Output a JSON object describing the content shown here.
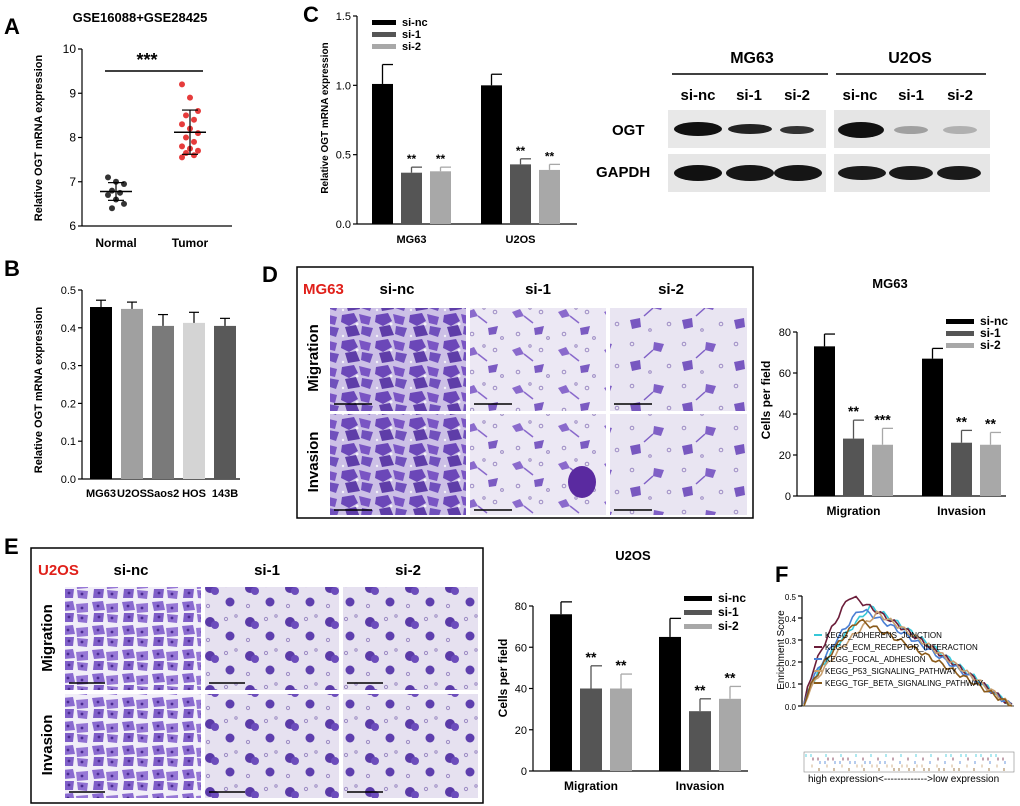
{
  "panels": {
    "A": {
      "letter": "A",
      "title": "GSE16088+GSE28425",
      "ylabel": "Relative OGT mRNA expression",
      "signif": "***",
      "yticks": [
        "6",
        "7",
        "8",
        "9",
        "10"
      ],
      "xticks": [
        "Normal",
        "Tumor"
      ],
      "normal_color": "#333333",
      "tumor_color": "#e63c3c"
    },
    "B": {
      "letter": "B",
      "ylabel": "Relative OGT mRNA expression",
      "yticks": [
        "0.0",
        "0.1",
        "0.2",
        "0.3",
        "0.4",
        "0.5"
      ]
    },
    "C": {
      "letter": "C",
      "ylabel": "Relative OGT mRNA expression",
      "yticks": [
        "0.0",
        "0.5",
        "1.0",
        "1.5"
      ],
      "legend": [
        "si-nc",
        "si-1",
        "si-2"
      ],
      "signif": [
        "**",
        "**",
        "**",
        "**"
      ],
      "blot": {
        "cell_lines": [
          "MG63",
          "U2OS"
        ],
        "lanes": [
          "si-nc",
          "si-1",
          "si-2",
          "si-nc",
          "si-1",
          "si-2"
        ],
        "rows": [
          "OGT",
          "GAPDH"
        ]
      }
    },
    "D": {
      "letter": "D",
      "cell_line": "MG63",
      "row_labels": [
        "Migration",
        "Invasion"
      ],
      "col_labels": [
        "si-nc",
        "si-1",
        "si-2"
      ],
      "chart_title": "MG63",
      "ylabel": "Cells per field",
      "yticks": [
        "0",
        "20",
        "40",
        "60",
        "80"
      ],
      "legend": [
        "si-nc",
        "si-1",
        "si-2"
      ],
      "signif": [
        "**",
        "***",
        "**",
        "**"
      ]
    },
    "E": {
      "letter": "E",
      "cell_line": "U2OS",
      "row_labels": [
        "Migration",
        "Invasion"
      ],
      "col_labels": [
        "si-nc",
        "si-1",
        "si-2"
      ],
      "chart_title": "U2OS",
      "ylabel": "Cells per field",
      "yticks": [
        "0",
        "20",
        "40",
        "60",
        "80"
      ],
      "legend": [
        "si-nc",
        "si-1",
        "si-2"
      ],
      "signif": [
        "**",
        "**",
        "**",
        "**"
      ]
    },
    "F": {
      "letter": "F",
      "ylabel": "Enrichment Score",
      "yticks": [
        "0.0",
        "0.1",
        "0.2",
        "0.3",
        "0.4",
        "0.5"
      ],
      "legend": [
        {
          "label": "KEGG_ADHERENS_JUNCTION",
          "color": "#36c7d8"
        },
        {
          "label": "KEGG_ECM_RECEPTOR_INTERACTION",
          "color": "#6b1d3a"
        },
        {
          "label": "KEGG_FOCAL_ADHESION",
          "color": "#4a7fd4"
        },
        {
          "label": "KEGG_P53_SIGNALING_PATHWAY",
          "color": "#c8a070"
        },
        {
          "label": "KEGG_TGF_BETA_SIGNALING_PATHWAY",
          "color": "#8a5a1a"
        }
      ],
      "bottom_label": "high expression<------------->low expression"
    }
  },
  "colors": {
    "si_nc": "#000000",
    "si_1": "#555555",
    "si_2": "#a8a8a8",
    "stain": "#6b47b8",
    "cell_line_red": "#e0201a"
  },
  "chart_data": [
    {
      "id": "A",
      "type": "scatter",
      "title": "GSE16088+GSE28425",
      "ylabel": "Relative OGT mRNA expression",
      "categories": [
        "Normal",
        "Tumor"
      ],
      "ylim": [
        6,
        10
      ],
      "series": [
        {
          "name": "Normal",
          "values": [
            7.1,
            7.0,
            6.95,
            6.8,
            6.75,
            6.7,
            6.6,
            6.5,
            6.4
          ],
          "mean": 6.78,
          "sd": 0.2
        },
        {
          "name": "Tumor",
          "values": [
            9.2,
            8.9,
            8.6,
            8.5,
            8.4,
            8.3,
            8.2,
            8.1,
            8.0,
            7.9,
            7.8,
            7.75,
            7.7,
            7.65,
            7.6,
            7.55
          ],
          "mean": 8.12,
          "sd": 0.5
        }
      ]
    },
    {
      "id": "B",
      "type": "bar",
      "ylabel": "Relative OGT mRNA expression",
      "categories": [
        "MG63",
        "U2OS",
        "Saos2",
        "HOS",
        "143B"
      ],
      "values": [
        0.455,
        0.45,
        0.405,
        0.413,
        0.405
      ],
      "errors": [
        0.018,
        0.018,
        0.03,
        0.028,
        0.02
      ],
      "colors": [
        "#000000",
        "#a0a0a0",
        "#7a7a7a",
        "#d4d4d4",
        "#595959"
      ],
      "ylim": [
        0,
        0.5
      ]
    },
    {
      "id": "C",
      "type": "bar",
      "ylabel": "Relative OGT mRNA expression",
      "categories": [
        "MG63",
        "U2OS"
      ],
      "ylim": [
        0,
        1.5
      ],
      "series": [
        {
          "name": "si-nc",
          "values": [
            1.01,
            1.0
          ],
          "errors": [
            0.14,
            0.08
          ]
        },
        {
          "name": "si-1",
          "values": [
            0.37,
            0.43
          ],
          "errors": [
            0.04,
            0.04
          ]
        },
        {
          "name": "si-2",
          "values": [
            0.38,
            0.39
          ],
          "errors": [
            0.03,
            0.04
          ]
        }
      ]
    },
    {
      "id": "D",
      "type": "bar",
      "title": "MG63",
      "ylabel": "Cells per field",
      "categories": [
        "Migration",
        "Invasion"
      ],
      "ylim": [
        0,
        80
      ],
      "series": [
        {
          "name": "si-nc",
          "values": [
            73,
            67
          ],
          "errors": [
            6,
            5
          ]
        },
        {
          "name": "si-1",
          "values": [
            28,
            26
          ],
          "errors": [
            9,
            6
          ]
        },
        {
          "name": "si-2",
          "values": [
            25,
            25
          ],
          "errors": [
            8,
            6
          ]
        }
      ]
    },
    {
      "id": "E",
      "type": "bar",
      "title": "U2OS",
      "ylabel": "Cells per field",
      "categories": [
        "Migration",
        "Invasion"
      ],
      "ylim": [
        0,
        80
      ],
      "series": [
        {
          "name": "si-nc",
          "values": [
            76,
            65
          ],
          "errors": [
            6,
            9
          ]
        },
        {
          "name": "si-1",
          "values": [
            40,
            29
          ],
          "errors": [
            11,
            6
          ]
        },
        {
          "name": "si-2",
          "values": [
            40,
            35
          ],
          "errors": [
            7,
            6
          ]
        }
      ]
    },
    {
      "id": "F",
      "type": "line",
      "ylabel": "Enrichment Score",
      "ylim": [
        0,
        0.5
      ],
      "series": [
        {
          "name": "KEGG_ADHERENS_JUNCTION",
          "peak": 0.45
        },
        {
          "name": "KEGG_ECM_RECEPTOR_INTERACTION",
          "peak": 0.5
        },
        {
          "name": "KEGG_FOCAL_ADHESION",
          "peak": 0.44
        },
        {
          "name": "KEGG_P53_SIGNALING_PATHWAY",
          "peak": 0.42
        },
        {
          "name": "KEGG_TGF_BETA_SIGNALING_PATHWAY",
          "peak": 0.39
        }
      ]
    }
  ]
}
